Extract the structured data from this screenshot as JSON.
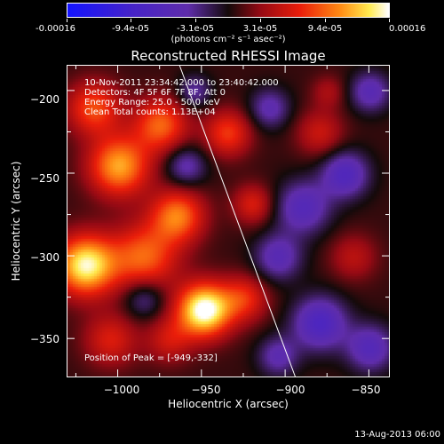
{
  "colorbar": {
    "tick_labels": [
      "-0.00016",
      "-9.4e-05",
      "-3.1e-05",
      "3.1e-05",
      "9.4e-05",
      "0.00016"
    ],
    "units": "(photons cm⁻² s⁻¹ asec⁻²)",
    "range": [
      -0.00016,
      0.00016
    ]
  },
  "chart_data": {
    "type": "heatmap",
    "title": "Reconstructed RHESSI Image",
    "xlabel": "Heliocentric X (arcsec)",
    "ylabel": "Heliocentric Y (arcsec)",
    "xlim": [
      -1030,
      -838
    ],
    "ylim": [
      -373,
      -185
    ],
    "xticks": [
      -1000,
      -950,
      -900,
      -850
    ],
    "yticks": [
      -200,
      -250,
      -300,
      -350
    ],
    "x_tick_labels": [
      "−1000",
      "−950",
      "−900",
      "−850"
    ],
    "y_tick_labels": [
      "−200",
      "−250",
      "−300",
      "−350"
    ],
    "peak": {
      "x": -949,
      "y": -332
    },
    "limb_line": [
      [
        -963,
        -185
      ],
      [
        -894,
        -373
      ]
    ],
    "blobs": [
      {
        "x": -949,
        "y": -332,
        "r": 16,
        "v": 1.0
      },
      {
        "x": -1020,
        "y": -305,
        "r": 18,
        "v": 0.9
      },
      {
        "x": -1000,
        "y": -245,
        "r": 18,
        "v": 0.7
      },
      {
        "x": -985,
        "y": -300,
        "r": 20,
        "v": 0.55
      },
      {
        "x": -965,
        "y": -275,
        "r": 16,
        "v": 0.6
      },
      {
        "x": -975,
        "y": -220,
        "r": 16,
        "v": 0.55
      },
      {
        "x": -1015,
        "y": -210,
        "r": 16,
        "v": 0.5
      },
      {
        "x": -935,
        "y": -225,
        "r": 14,
        "v": 0.45
      },
      {
        "x": -920,
        "y": -268,
        "r": 12,
        "v": 0.35
      },
      {
        "x": -925,
        "y": -325,
        "r": 14,
        "v": 0.4
      },
      {
        "x": -1005,
        "y": -350,
        "r": 16,
        "v": 0.35
      },
      {
        "x": -970,
        "y": -350,
        "r": 14,
        "v": 0.3
      },
      {
        "x": -880,
        "y": -225,
        "r": 14,
        "v": 0.3
      },
      {
        "x": -860,
        "y": -300,
        "r": 14,
        "v": 0.25
      },
      {
        "x": -875,
        "y": -200,
        "r": 10,
        "v": 0.2
      },
      {
        "x": -960,
        "y": -245,
        "r": 12,
        "v": -0.35
      },
      {
        "x": -985,
        "y": -325,
        "r": 12,
        "v": -0.3
      },
      {
        "x": -890,
        "y": -270,
        "r": 16,
        "v": -0.45
      },
      {
        "x": -865,
        "y": -250,
        "r": 14,
        "v": -0.5
      },
      {
        "x": -880,
        "y": -340,
        "r": 16,
        "v": -0.55
      },
      {
        "x": -850,
        "y": -355,
        "r": 14,
        "v": -0.45
      },
      {
        "x": -905,
        "y": -300,
        "r": 14,
        "v": -0.4
      },
      {
        "x": -850,
        "y": -200,
        "r": 12,
        "v": -0.4
      },
      {
        "x": -910,
        "y": -210,
        "r": 12,
        "v": -0.35
      },
      {
        "x": -905,
        "y": -360,
        "r": 12,
        "v": -0.35
      },
      {
        "x": -955,
        "y": -200,
        "r": 10,
        "v": -0.3
      }
    ],
    "annotations": [
      "10-Nov-2011 23:34:42.000 to 23:40:42.000",
      "Detectors: 4F 5F 6F 7F 8F, Att 0",
      "Energy Range: 25.0 - 50.0 keV",
      "Clean     Total counts: 1.13E+04"
    ],
    "peak_label": "Position of Peak = [-949,-332]"
  },
  "footer": {
    "date": "13-Aug-2013 06:00"
  }
}
